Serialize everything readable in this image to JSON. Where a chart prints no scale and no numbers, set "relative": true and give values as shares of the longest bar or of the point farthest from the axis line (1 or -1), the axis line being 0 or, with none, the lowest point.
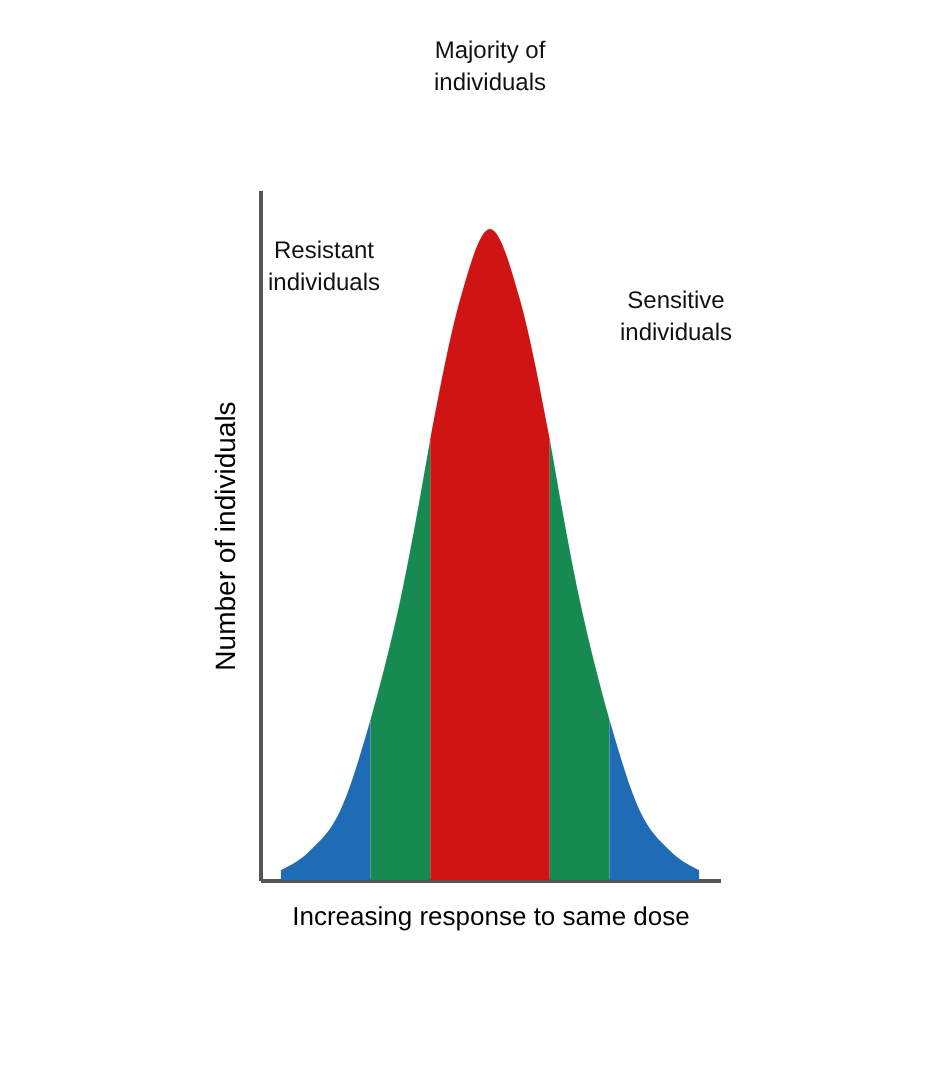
{
  "chart_data": {
    "type": "area",
    "relative": true,
    "xlabel": "Increasing response to same dose",
    "ylabel": "Number of individuals",
    "categories": [
      null,
      null,
      null,
      null,
      null,
      null,
      null,
      null,
      null,
      null,
      null,
      null,
      null,
      null,
      null
    ],
    "series": [
      {
        "color": "#1f6bb5",
        "values": [
          0.015,
          0.046,
          0.108,
          0.246,
          null,
          null,
          null,
          null,
          null,
          null,
          null,
          null,
          null,
          null,
          null
        ]
      },
      {
        "color": "#178a52",
        "values": [
          null,
          null,
          null,
          0.246,
          0.431,
          0.677,
          null,
          null,
          null,
          null,
          null,
          null,
          null,
          null,
          null
        ]
      },
      {
        "color": "#d01414",
        "values": [
          null,
          null,
          null,
          null,
          null,
          0.677,
          0.892,
          1,
          0.892,
          0.677,
          null,
          null,
          null,
          null,
          null
        ]
      },
      {
        "color": "#178a52",
        "values": [
          null,
          null,
          null,
          null,
          null,
          null,
          null,
          null,
          null,
          0.677,
          0.431,
          0.246,
          null,
          null,
          null
        ]
      },
      {
        "color": "#1f6bb5",
        "values": [
          null,
          null,
          null,
          null,
          null,
          null,
          null,
          null,
          null,
          null,
          null,
          0.246,
          0.108,
          0.046,
          0.015
        ]
      }
    ],
    "annotations": [
      "Majority of individuals",
      "Resistant individuals",
      "Sensitive individuals"
    ],
    "grid": false
  }
}
